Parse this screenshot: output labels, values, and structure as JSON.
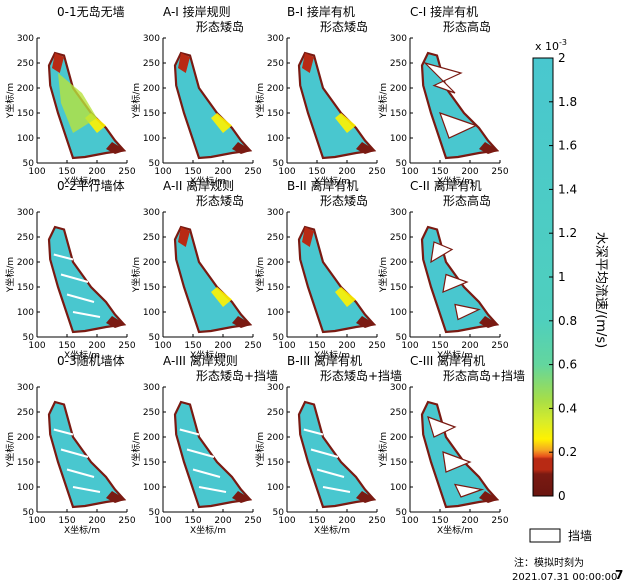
{
  "chart_data": {
    "type": "heatmap",
    "panels": [
      {
        "title_line1": "0-1无岛无墙",
        "title_line2": "",
        "xlabel": "X坐标/m",
        "ylabel": "Y坐标/m"
      },
      {
        "title_line1": "A-I 接岸规则",
        "title_line2": "形态矮岛",
        "xlabel": "X坐标/m",
        "ylabel": "Y坐标/m"
      },
      {
        "title_line1": "B-I 接岸有机",
        "title_line2": "形态矮岛",
        "xlabel": "X坐标/m",
        "ylabel": "Y坐标/m"
      },
      {
        "title_line1": "C-I 接岸有机",
        "title_line2": "形态高岛",
        "xlabel": "X坐标/m",
        "ylabel": "Y坐标/m"
      },
      {
        "title_line1": "0-2平行墙体",
        "title_line2": "",
        "xlabel": "X坐标/m",
        "ylabel": "Y坐标/m"
      },
      {
        "title_line1": "A-II 离岸规则",
        "title_line2": "形态矮岛",
        "xlabel": "X坐标/m",
        "ylabel": "Y坐标/m"
      },
      {
        "title_line1": "B-II 离岸有机",
        "title_line2": "形态矮岛",
        "xlabel": "X坐标/m",
        "ylabel": "Y坐标/m"
      },
      {
        "title_line1": "C-II 离岸有机",
        "title_line2": "形态高岛",
        "xlabel": "X坐标/m",
        "ylabel": "Y坐标/m"
      },
      {
        "title_line1": "0-3随机墙体",
        "title_line2": "",
        "xlabel": "X坐标/m",
        "ylabel": "Y坐标/m"
      },
      {
        "title_line1": "A-III 离岸规则",
        "title_line2": "形态矮岛+挡墙",
        "xlabel": "X坐标/m",
        "ylabel": "Y坐标/m"
      },
      {
        "title_line1": "B-III 离岸有机",
        "title_line2": "形态矮岛+挡墙",
        "xlabel": "X坐标/m",
        "ylabel": "Y坐标/m"
      },
      {
        "title_line1": "C-III 离岸有机",
        "title_line2": "形态高岛+挡墙",
        "xlabel": "X坐标/m",
        "ylabel": "Y坐标/m"
      }
    ],
    "xticks": [
      "100",
      "150",
      "200",
      "250"
    ],
    "yticks": [
      "50",
      "100",
      "150",
      "200",
      "250",
      "300"
    ],
    "xlim": [
      100,
      250
    ],
    "ylim": [
      50,
      300
    ],
    "colorbar": {
      "label": "水深平均流速/(m/s)",
      "multiplier": "x 10",
      "exponent": "-3",
      "range": [
        0,
        2
      ],
      "ticks": [
        "0",
        "0.2",
        "0.4",
        "0.6",
        "0.8",
        "1",
        "1.2",
        "1.4",
        "1.6",
        "1.8",
        "2"
      ],
      "colors": [
        "#7a1a12",
        "#b82a14",
        "#e8501c",
        "#f5a623",
        "#fff200",
        "#b8e23c",
        "#56d9b0",
        "#49c7cf"
      ]
    },
    "legend": {
      "label": "挡墙",
      "swatch_color": "#ffffff"
    },
    "note_line1": "注：模拟时刻为",
    "note_line2": "2021.07.31 00:00:00",
    "page_number": "7"
  }
}
